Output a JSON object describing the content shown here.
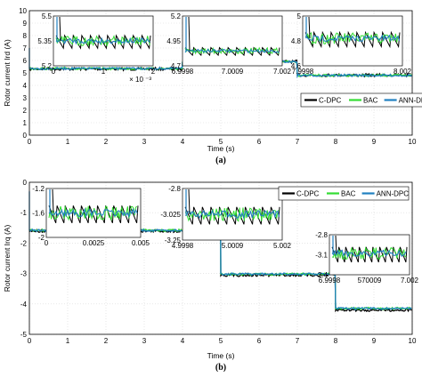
{
  "colors": {
    "C-DPC": "#000000",
    "BAC": "#33dd33",
    "ANN-DPC": "#2080c0"
  },
  "chart_data": [
    {
      "type": "line",
      "panel_label": "(a)",
      "xlabel": "Time (s)",
      "ylabel": "Rotor current Ird (A)",
      "xlim": [
        0,
        10
      ],
      "ylim": [
        0,
        10
      ],
      "xticks": [
        "0",
        "1",
        "2",
        "3",
        "4",
        "5",
        "6",
        "7",
        "8",
        "9",
        "10"
      ],
      "yticks": [
        "0",
        "1",
        "2",
        "3",
        "4",
        "5",
        "6",
        "7",
        "8",
        "9",
        "10"
      ],
      "grid": true,
      "legend": {
        "entries": [
          "C-DPC",
          "BAC",
          "ANN-DPC"
        ],
        "placement": "bottom-right"
      },
      "series": [
        {
          "name": "C-DPC",
          "x": [
            0,
            4,
            4,
            7,
            7,
            10
          ],
          "y": [
            5.32,
            5.32,
            5.9,
            5.9,
            4.82,
            4.82
          ]
        },
        {
          "name": "BAC",
          "x": [
            0,
            4,
            4,
            7,
            7,
            10
          ],
          "y": [
            5.35,
            5.35,
            5.9,
            5.9,
            4.8,
            4.8
          ]
        },
        {
          "name": "ANN-DPC",
          "x": [
            0,
            4,
            4,
            7,
            7,
            10
          ],
          "y": [
            5.35,
            5.35,
            5.9,
            5.9,
            4.8,
            4.8
          ]
        }
      ],
      "insets": [
        {
          "xlim": [
            0,
            2
          ],
          "ylim": [
            5.2,
            5.5
          ],
          "xticks": [
            "0",
            "1",
            "2"
          ],
          "yticks": [
            "5.5",
            "5.35",
            "5.2"
          ],
          "xnote": "× 10 ⁻³",
          "center": 5.35,
          "amp": 0.04
        },
        {
          "xlim": [
            6.9998,
            7.002
          ],
          "ylim": [
            4.7,
            5.2
          ],
          "xticks": [
            "6.9998",
            "7.0009",
            "7.002"
          ],
          "yticks": [
            "5.2",
            "4.95",
            "4.7"
          ],
          "center": 4.85,
          "amp": 0.04
        },
        {
          "xlim": [
            7.9998,
            8.002
          ],
          "ylim": [
            4.6,
            5.0
          ],
          "xticks": [
            "7.9998",
            "8.002"
          ],
          "yticks": [
            "5",
            "4.8",
            "4.6"
          ],
          "center": 4.82,
          "amp": 0.06
        }
      ]
    },
    {
      "type": "line",
      "panel_label": "(b)",
      "xlabel": "Time (s)",
      "ylabel": "Rotor current Irq (A)",
      "xlim": [
        0,
        10
      ],
      "ylim": [
        -5,
        0
      ],
      "xticks": [
        "0",
        "1",
        "2",
        "3",
        "4",
        "5",
        "6",
        "7",
        "8",
        "9",
        "10"
      ],
      "yticks": [
        "0",
        "-1",
        "-2",
        "-3",
        "-4",
        "-5"
      ],
      "grid": true,
      "legend": {
        "entries": [
          "C-DPC",
          "BAC",
          "ANN-DPC"
        ],
        "placement": "top-right"
      },
      "series": [
        {
          "name": "C-DPC",
          "x": [
            0,
            5,
            5,
            8,
            8,
            10
          ],
          "y": [
            -1.6,
            -1.6,
            -3.05,
            -3.05,
            -4.2,
            -4.2
          ]
        },
        {
          "name": "BAC",
          "x": [
            0,
            5,
            5,
            8,
            8,
            10
          ],
          "y": [
            -1.58,
            -1.58,
            -3.02,
            -3.02,
            -4.15,
            -4.15
          ]
        },
        {
          "name": "ANN-DPC",
          "x": [
            0,
            5,
            5,
            8,
            8,
            10
          ],
          "y": [
            -1.58,
            -1.58,
            -3.02,
            -3.02,
            -4.15,
            -4.15
          ]
        }
      ],
      "insets": [
        {
          "xlim": [
            0,
            0.005
          ],
          "ylim": [
            -2,
            -1.2
          ],
          "xticks": [
            "0",
            "0.0025",
            "0.005"
          ],
          "yticks": [
            "-1.2",
            "-1.6",
            "-2"
          ],
          "center": -1.6,
          "amp": 0.15
        },
        {
          "xlim": [
            4.9998,
            5.002
          ],
          "ylim": [
            -3.25,
            -2.8
          ],
          "xticks": [
            "4.9998",
            "5.0009",
            "5.002"
          ],
          "yticks": [
            "-2.8",
            "-3.025",
            "-3.25"
          ],
          "center": -3.025,
          "amp": 0.08
        },
        {
          "xlim": [
            6.9998,
            7.002
          ],
          "ylim": [
            -3.4,
            -2.8
          ],
          "xticks": [
            "6.9998",
            "570009",
            "7.002"
          ],
          "yticks": [
            "-2.8",
            "-3.1",
            "-3.4"
          ],
          "center": -3.08,
          "amp": 0.12
        }
      ]
    }
  ]
}
